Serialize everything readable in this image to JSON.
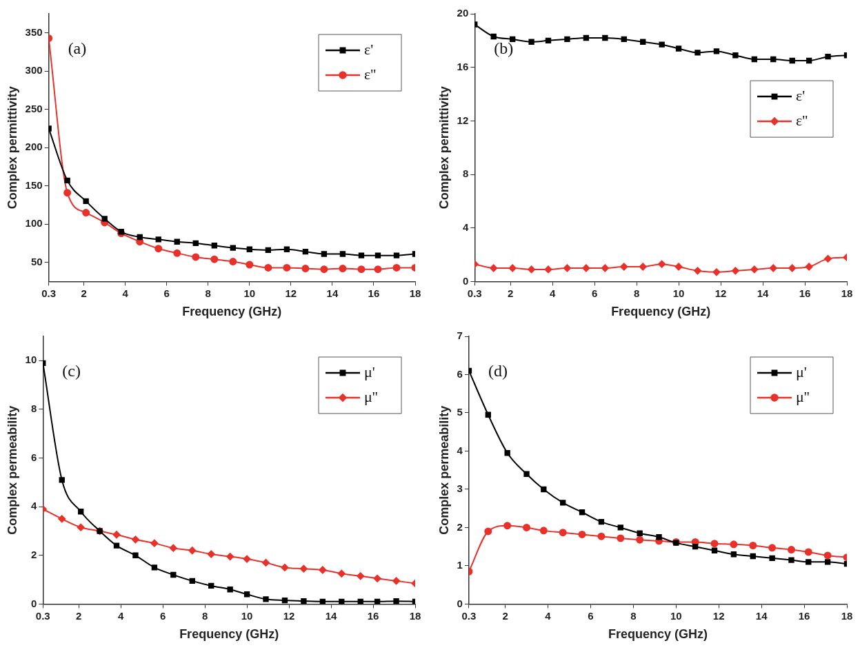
{
  "chart_data": [
    {
      "type": "line",
      "annotations": [
        "(a)"
      ],
      "xlabel": "Frequency (GHz)",
      "ylabel": "Complex permittivity",
      "x": [
        0.3,
        1.2,
        2.1,
        3.0,
        3.8,
        4.7,
        5.6,
        6.5,
        7.4,
        8.3,
        9.2,
        10.0,
        10.9,
        11.8,
        12.7,
        13.6,
        14.5,
        15.4,
        16.2,
        17.1,
        18
      ],
      "xlim": [
        0.3,
        18
      ],
      "xticks": [
        0.3,
        2,
        4,
        6,
        8,
        10,
        12,
        14,
        16,
        18
      ],
      "ylim": [
        25,
        375
      ],
      "yticks": [
        50,
        100,
        150,
        200,
        250,
        300,
        350
      ],
      "legend": "top right",
      "grid": false,
      "series": [
        {
          "name": "ε'",
          "color": "#000000",
          "marker": "square",
          "values": [
            225,
            157,
            130,
            107,
            90,
            83,
            80,
            77,
            75,
            72,
            69,
            67,
            66,
            67,
            64,
            61,
            61,
            59,
            59,
            59,
            61
          ]
        },
        {
          "name": "ε''",
          "color": "#e8312a",
          "marker": "circle",
          "values": [
            343,
            141,
            115,
            102,
            88,
            77,
            68,
            62,
            57,
            54,
            51,
            47,
            43,
            43,
            42,
            41,
            42,
            41,
            41,
            43,
            43
          ]
        }
      ]
    },
    {
      "type": "line",
      "annotations": [
        "(b)"
      ],
      "xlabel": "Frequency (GHz)",
      "ylabel": "Complex permittivity",
      "x": [
        0.3,
        1.2,
        2.1,
        3.0,
        3.8,
        4.7,
        5.6,
        6.5,
        7.4,
        8.3,
        9.2,
        10.0,
        10.9,
        11.8,
        12.7,
        13.6,
        14.5,
        15.4,
        16.2,
        17.1,
        18
      ],
      "xlim": [
        0.3,
        18
      ],
      "xticks": [
        0.3,
        2,
        4,
        6,
        8,
        10,
        12,
        14,
        16,
        18
      ],
      "ylim": [
        0,
        20
      ],
      "yticks": [
        0,
        4,
        8,
        12,
        16,
        20
      ],
      "legend": "right",
      "grid": false,
      "series": [
        {
          "name": "ε'",
          "color": "#000000",
          "marker": "square",
          "values": [
            19.2,
            18.3,
            18.1,
            17.9,
            18.0,
            18.1,
            18.2,
            18.2,
            18.1,
            17.9,
            17.7,
            17.4,
            17.1,
            17.2,
            16.9,
            16.6,
            16.6,
            16.5,
            16.5,
            16.8,
            16.9
          ]
        },
        {
          "name": "ε''",
          "color": "#e8312a",
          "marker": "diamond",
          "values": [
            1.3,
            1.0,
            1.0,
            0.9,
            0.9,
            1.0,
            1.0,
            1.0,
            1.1,
            1.1,
            1.3,
            1.1,
            0.8,
            0.7,
            0.8,
            0.9,
            1.0,
            1.0,
            1.1,
            1.7,
            1.8
          ]
        }
      ]
    },
    {
      "type": "line",
      "annotations": [
        "(c)"
      ],
      "xlabel": "Frequency (GHz)",
      "ylabel": "Complex permeability",
      "x": [
        0.3,
        1.2,
        2.1,
        3.0,
        3.8,
        4.7,
        5.6,
        6.5,
        7.4,
        8.3,
        9.2,
        10.0,
        10.9,
        11.8,
        12.7,
        13.6,
        14.5,
        15.4,
        16.2,
        17.1,
        18
      ],
      "xlim": [
        0.3,
        18
      ],
      "xticks": [
        0.3,
        2,
        4,
        6,
        8,
        10,
        12,
        14,
        16,
        18
      ],
      "ylim": [
        0,
        11
      ],
      "yticks": [
        0,
        2,
        4,
        6,
        8,
        10
      ],
      "legend": "top right",
      "grid": false,
      "series": [
        {
          "name": "μ'",
          "color": "#000000",
          "marker": "square",
          "values": [
            9.9,
            5.1,
            3.8,
            3.0,
            2.4,
            2.0,
            1.5,
            1.2,
            0.95,
            0.75,
            0.6,
            0.4,
            0.2,
            0.15,
            0.12,
            0.1,
            0.1,
            0.1,
            0.1,
            0.12,
            0.1
          ]
        },
        {
          "name": "μ''",
          "color": "#e8312a",
          "marker": "diamond",
          "values": [
            3.9,
            3.5,
            3.15,
            3.0,
            2.85,
            2.65,
            2.5,
            2.3,
            2.2,
            2.05,
            1.95,
            1.85,
            1.7,
            1.5,
            1.45,
            1.4,
            1.25,
            1.15,
            1.05,
            0.95,
            0.85
          ]
        }
      ]
    },
    {
      "type": "line",
      "annotations": [
        "(d)"
      ],
      "xlabel": "Frequency (GHz)",
      "ylabel": "Complex permeability",
      "x": [
        0.3,
        1.2,
        2.1,
        3.0,
        3.8,
        4.7,
        5.6,
        6.5,
        7.4,
        8.3,
        9.2,
        10.0,
        10.9,
        11.8,
        12.7,
        13.6,
        14.5,
        15.4,
        16.2,
        17.1,
        18
      ],
      "xlim": [
        0.3,
        18
      ],
      "xticks": [
        0.3,
        2,
        4,
        6,
        8,
        10,
        12,
        14,
        16,
        18
      ],
      "ylim": [
        0,
        7
      ],
      "yticks": [
        0,
        1,
        2,
        3,
        4,
        5,
        6,
        7
      ],
      "legend": "top right",
      "grid": false,
      "series": [
        {
          "name": "μ'",
          "color": "#000000",
          "marker": "square",
          "values": [
            6.1,
            4.95,
            3.95,
            3.4,
            3.0,
            2.65,
            2.4,
            2.15,
            2.0,
            1.85,
            1.75,
            1.6,
            1.5,
            1.4,
            1.3,
            1.25,
            1.2,
            1.15,
            1.1,
            1.1,
            1.05
          ]
        },
        {
          "name": "μ''",
          "color": "#e8312a",
          "marker": "circle",
          "values": [
            0.85,
            1.9,
            2.05,
            2.0,
            1.92,
            1.87,
            1.82,
            1.77,
            1.72,
            1.68,
            1.65,
            1.62,
            1.62,
            1.58,
            1.56,
            1.53,
            1.47,
            1.42,
            1.36,
            1.27,
            1.22
          ]
        }
      ]
    }
  ]
}
